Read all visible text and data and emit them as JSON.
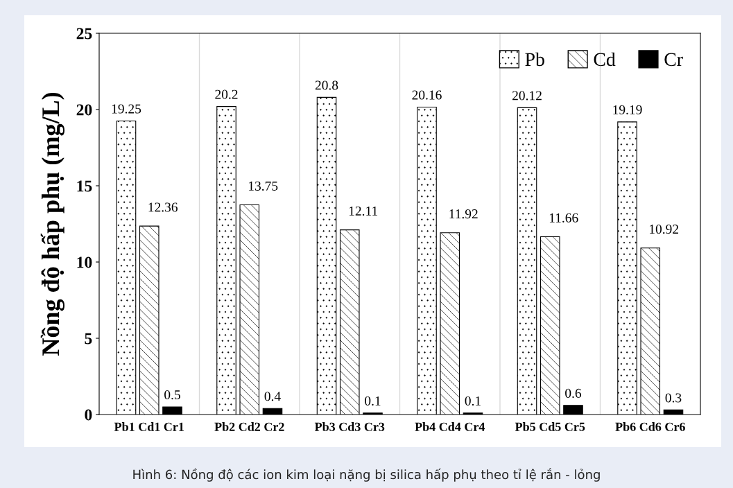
{
  "chart_data": {
    "type": "bar",
    "ylabel": "Nồng độ hấp phụ (mg/L)",
    "categories": [
      "Pb1 Cd1 Cr1",
      "Pb2 Cd2 Cr2",
      "Pb3 Cd3 Cr3",
      "Pb4 Cd4 Cr4",
      "Pb5 Cd5 Cr5",
      "Pb6 Cd6 Cr6"
    ],
    "series": [
      {
        "name": "Pb",
        "color": "#000000",
        "values": [
          19.25,
          20.2,
          20.8,
          20.16,
          20.12,
          19.19
        ]
      },
      {
        "name": "Cd",
        "color": "#000000",
        "values": [
          12.36,
          13.75,
          12.11,
          11.92,
          11.66,
          10.92
        ]
      },
      {
        "name": "Cr",
        "color": "#000000",
        "values": [
          0.5,
          0.4,
          0.1,
          0.1,
          0.6,
          0.3
        ]
      }
    ],
    "ylim": [
      0,
      25
    ],
    "yticks": [
      0,
      5,
      10,
      15,
      20,
      25
    ],
    "grid": "x",
    "legend": "top right",
    "data_labels": true,
    "annotations": [
      "Hình 6: Nồng độ các ion kim loại nặng bị silica hấp phụ theo tỉ lệ rắn - lỏng"
    ]
  }
}
